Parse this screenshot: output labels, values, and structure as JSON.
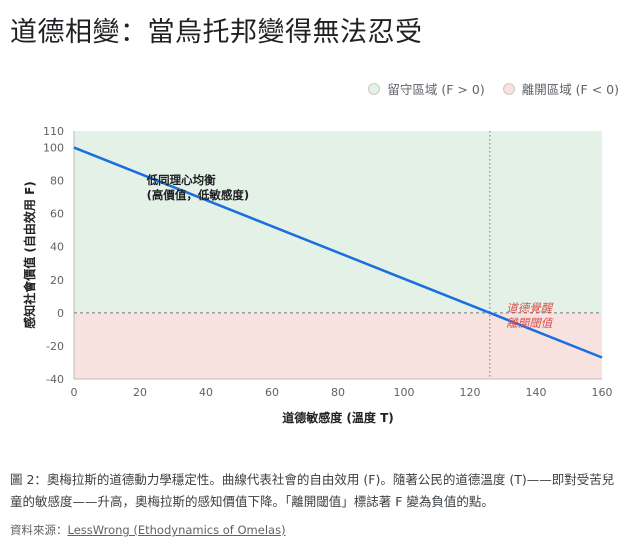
{
  "page": {
    "title": "道德相變：當烏托邦變得無法忍受",
    "caption": "圖 2：奧梅拉斯的道德動力學穩定性。曲線代表社會的自由效用 (F)。隨著公民的道德溫度 (T)——即對受苦兒童的敏感度——升高，奧梅拉斯的感知價值下降。「離開閾值」標誌著 F 變為負值的點。",
    "source_label": "資料來源：",
    "source_link": "LessWrong (Ethodynamics of Omelas)"
  },
  "legend": [
    {
      "label": "留守區域 (F > 0)",
      "color": "#e3f1e7"
    },
    {
      "label": "離開區域 (F < 0)",
      "color": "#f8e2e0"
    }
  ],
  "chart_data": {
    "type": "line",
    "xlabel": "道德敏感度 (溫度 T)",
    "ylabel": "感知社會價值 (自由效用 F)",
    "xlim": [
      0,
      160
    ],
    "ylim": [
      -40,
      110
    ],
    "x_ticks": [
      0,
      20,
      40,
      60,
      80,
      100,
      120,
      140,
      160
    ],
    "y_ticks": [
      -40,
      -20,
      0,
      20,
      40,
      60,
      80,
      100,
      110
    ],
    "series": [
      {
        "x": [
          0,
          160
        ],
        "y": [
          100,
          -27
        ],
        "color": "#1a6fde"
      }
    ],
    "threshold_x": 126,
    "zero_line_y": 0,
    "regions": [
      {
        "label": "留守區域 (F > 0)",
        "from_y": 0,
        "to_y": 110,
        "color": "#e3f1e7"
      },
      {
        "label": "離開區域 (F < 0)",
        "from_y": -40,
        "to_y": 0,
        "color": "#f8e2e0"
      }
    ],
    "annotations": [
      {
        "lines": [
          "低同理心均衡",
          "(高價值，低敏感度)"
        ],
        "x": 22,
        "y": 78,
        "color": "#202124",
        "bold": true,
        "italic": false
      },
      {
        "lines": [
          "道德覺醒",
          "離開閾值"
        ],
        "x": 131,
        "y": 0,
        "color": "#d9534f",
        "bold": false,
        "italic": true
      }
    ]
  }
}
